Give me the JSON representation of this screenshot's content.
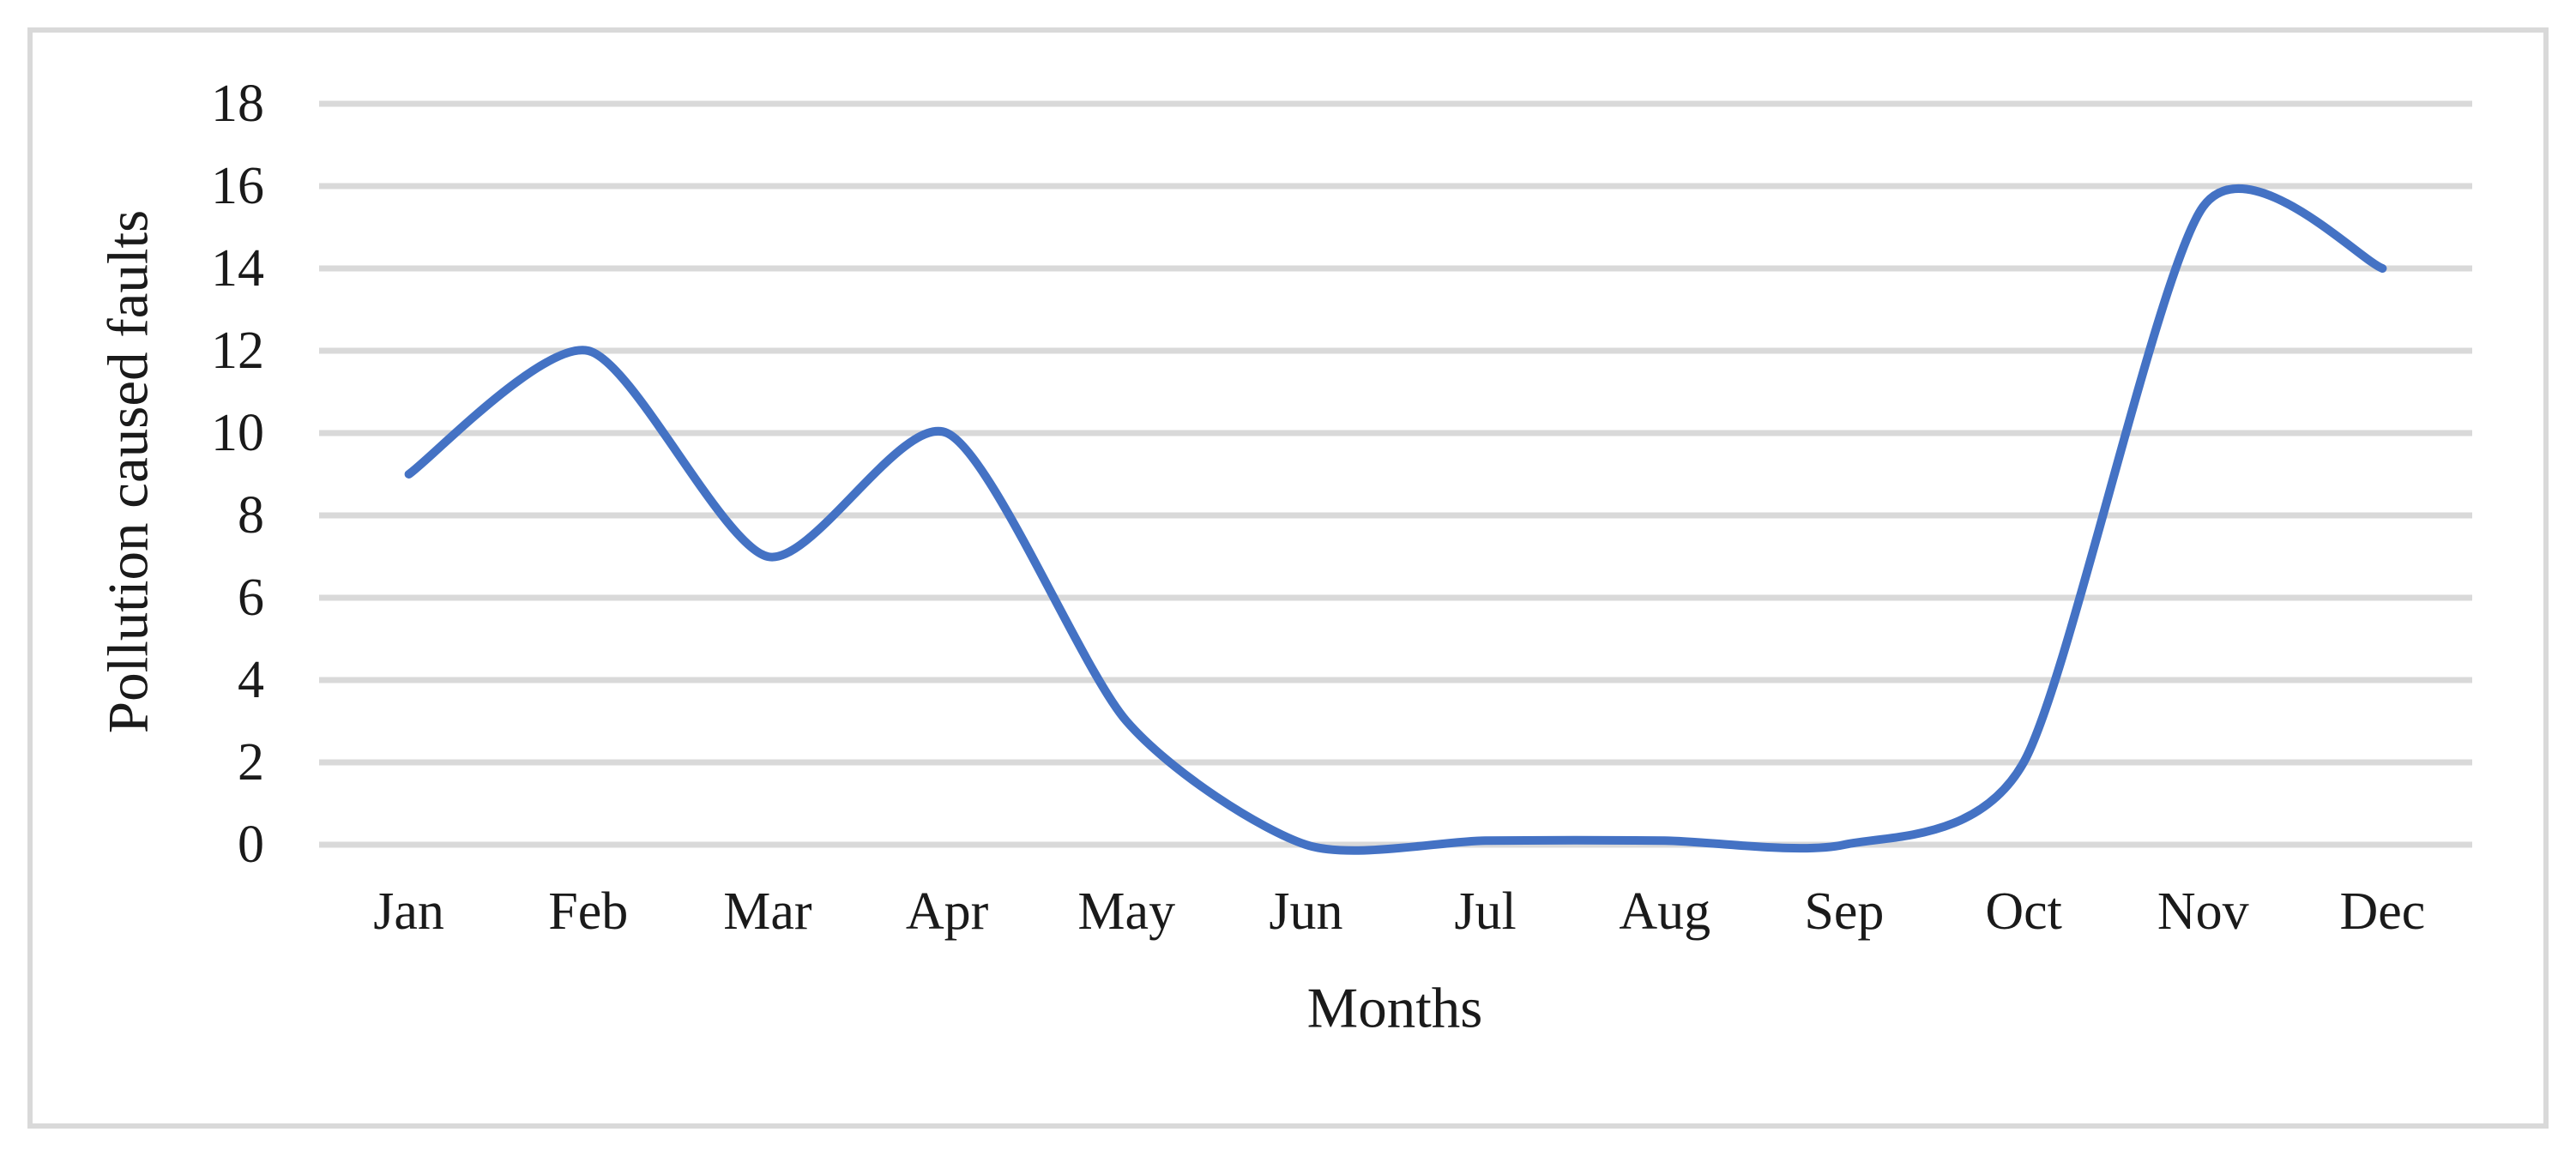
{
  "figure": {
    "background": "#FFFFFF",
    "border_color": "#D9D9D9"
  },
  "chart_data": {
    "type": "line",
    "title": "",
    "categories": [
      "Jan",
      "Feb",
      "Mar",
      "Apr",
      "May",
      "Jun",
      "Jul",
      "Aug",
      "Sep",
      "Oct",
      "Nov",
      "Dec"
    ],
    "series": [
      {
        "name": "Pollution caused faults",
        "values": [
          9,
          12,
          7,
          10,
          3,
          0,
          0.1,
          0.1,
          0,
          2,
          15.5,
          14
        ]
      }
    ],
    "xlabel": "Months",
    "ylabel": "Pollution caused faults",
    "ylim": [
      0,
      18
    ],
    "yticks": [
      "0",
      "2",
      "4",
      "6",
      "8",
      "10",
      "12",
      "14",
      "16",
      "18"
    ],
    "grid": "horizontal-only",
    "legend": "none",
    "line_style": "smooth-spline",
    "line_color": "#4472C4",
    "gridline_color": "#D9D9D9",
    "text_color": "#1A1A1A"
  }
}
